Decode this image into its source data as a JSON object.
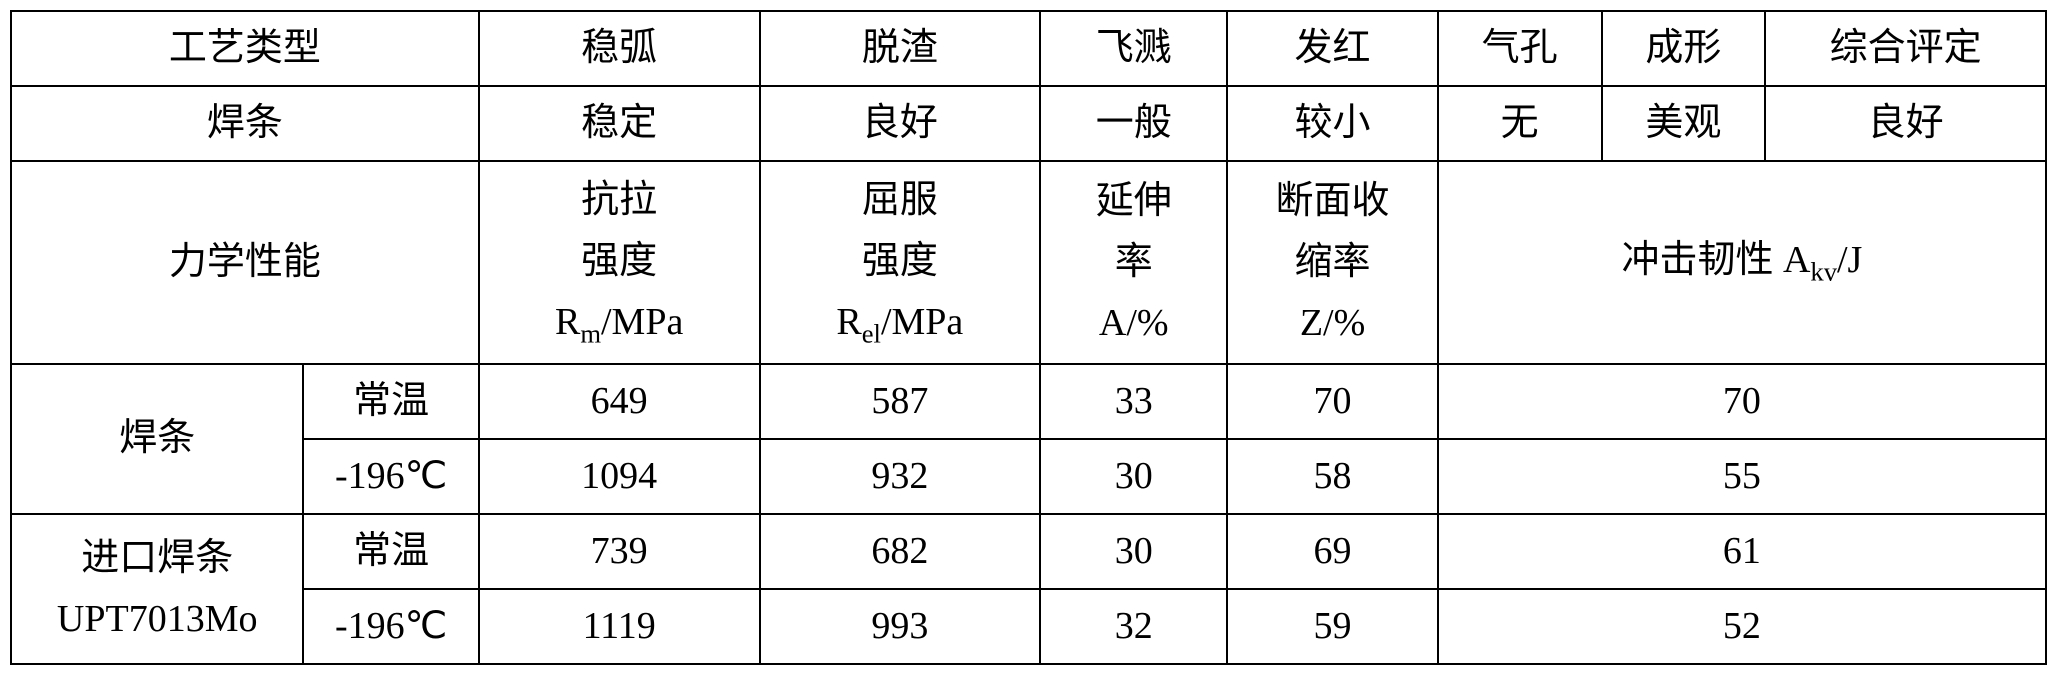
{
  "table": {
    "border_color": "#000000",
    "background_color": "#ffffff",
    "text_color": "#000000",
    "font_size": 38,
    "headers": {
      "process_type": "工艺类型",
      "arc_stability": "稳弧",
      "slag_removal": "脱渣",
      "spatter": "飞溅",
      "redness": "发红",
      "porosity": "气孔",
      "forming": "成形",
      "overall": "综合评定"
    },
    "row1": {
      "label": "焊条",
      "arc_stability": "稳定",
      "slag_removal": "良好",
      "spatter": "一般",
      "redness": "较小",
      "porosity": "无",
      "forming": "美观",
      "overall": "良好"
    },
    "mech_headers": {
      "label": "力学性能",
      "tensile_l1": "抗拉",
      "tensile_l2": "强度",
      "tensile_l3": "Rm/MPa",
      "yield_l1": "屈服",
      "yield_l2": "强度",
      "yield_l3": "Rel/MPa",
      "elong_l1": "延伸",
      "elong_l2": "率",
      "elong_l3": "A/%",
      "reduction_l1": "断面收",
      "reduction_l2": "缩率",
      "reduction_l3": "Z/%",
      "impact": "冲击韧性 Akv/J"
    },
    "electrode": {
      "label": "焊条",
      "room_temp": {
        "temp": "常温",
        "tensile": "649",
        "yield": "587",
        "elong": "33",
        "reduction": "70",
        "impact": "70"
      },
      "low_temp": {
        "temp": "-196℃",
        "tensile": "1094",
        "yield": "932",
        "elong": "30",
        "reduction": "58",
        "impact": "55"
      }
    },
    "imported": {
      "label_l1": "进口焊条",
      "label_l2": "UPT7013Mo",
      "room_temp": {
        "temp": "常温",
        "tensile": "739",
        "yield": "682",
        "elong": "30",
        "reduction": "69",
        "impact": "61"
      },
      "low_temp": {
        "temp": "-196℃",
        "tensile": "1119",
        "yield": "993",
        "elong": "32",
        "reduction": "59",
        "impact": "52"
      }
    }
  }
}
